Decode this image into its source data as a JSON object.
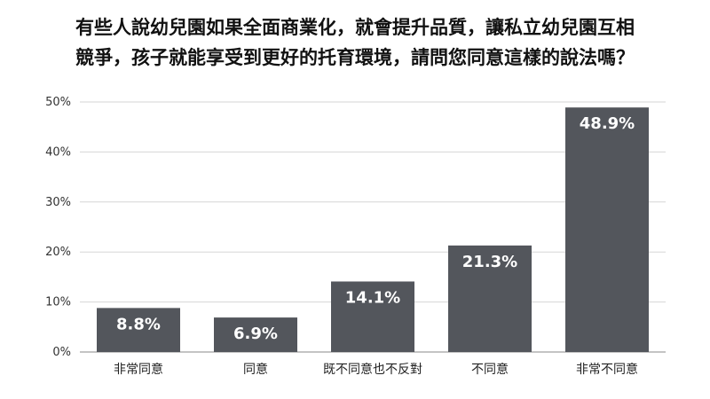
{
  "chart_data": {
    "type": "bar",
    "title_lines": [
      "有些人說幼兒園如果全面商業化，就會提升品質，讓私立幼兒園互相",
      "競爭，孩子就能享受到更好的托育環境，請問您同意這樣的說法嗎？"
    ],
    "categories": [
      "非常同意",
      "同意",
      "既不同意也不反對",
      "不同意",
      "非常不同意"
    ],
    "values": [
      8.8,
      6.9,
      14.1,
      21.3,
      48.9
    ],
    "value_labels": [
      "8.8%",
      "6.9%",
      "14.1%",
      "21.3%",
      "48.9%"
    ],
    "ylim": [
      0,
      50
    ],
    "yticks": [
      0,
      10,
      20,
      30,
      40,
      50
    ],
    "ytick_labels": [
      "0%",
      "10%",
      "20%",
      "30%",
      "40%",
      "50%"
    ],
    "grid": true,
    "colors": {
      "bar": "#53565c",
      "grid": "#d6d6d6",
      "axis": "#888888"
    }
  }
}
